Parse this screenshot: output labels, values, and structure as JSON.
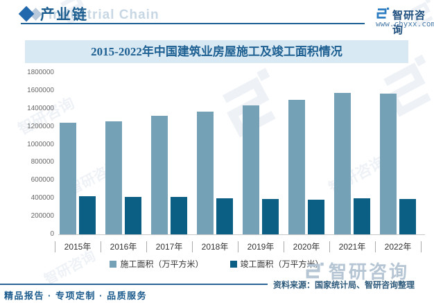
{
  "header": {
    "section_title": "产业链",
    "section_title_en": "Industrial Chain",
    "brand_name": "智研咨询",
    "website": "www.chyxx.com"
  },
  "chart_data": {
    "type": "bar",
    "title": "2015-2022年中国建筑业房屋施工及竣工面积情况",
    "categories": [
      "2015年",
      "2016年",
      "2017年",
      "2018年",
      "2019年",
      "2020年",
      "2021年",
      "2022年"
    ],
    "series": [
      {
        "name": "施工面积（万平方米）",
        "color": "#74a1b6",
        "values": [
          1240000,
          1260000,
          1320000,
          1370000,
          1440000,
          1495000,
          1575000,
          1565000
        ]
      },
      {
        "name": "竣工面积（万平方米）",
        "color": "#0b5e84",
        "values": [
          422000,
          421000,
          417000,
          405000,
          397000,
          386000,
          404000,
          397000
        ]
      }
    ],
    "ylim": [
      0,
      1800000
    ],
    "ytick_step": 200000,
    "grid": false,
    "legend_position": "bottom"
  },
  "footer": {
    "source": "资料来源：国家统计局、智研咨询整理",
    "tagline": "精品报告 · 专项定制 · 品质服务",
    "watermark_brand": "智研咨询"
  },
  "colors": {
    "accent_blue": "#1e5f93",
    "banner_bg": "#d8e9f4",
    "series_construction": "#74a1b6",
    "series_completion": "#0b5e84"
  }
}
